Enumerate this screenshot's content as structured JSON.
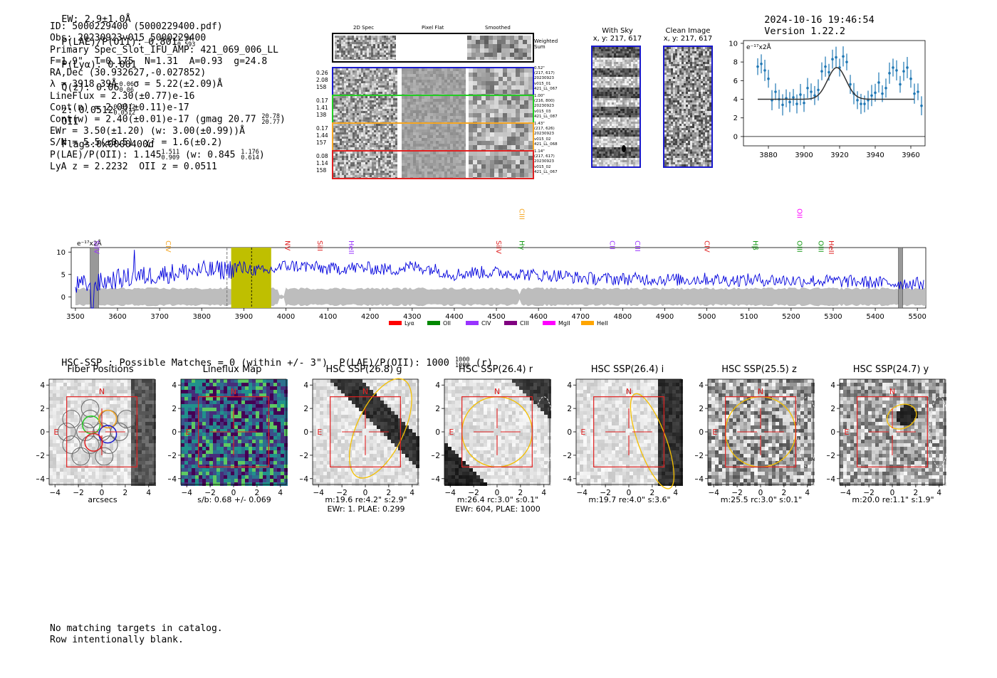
{
  "header": {
    "ew": "EW: 2.9±1.0Å",
    "plae": "P(LAE)/P(OII): 0.801",
    "plae_hi": "1.14",
    "plae_lo": "0.593",
    "plya": "P(Lyα): 0.001",
    "q": "Q(z): 0.06",
    "q_hi": "0.06",
    "q_lo": "0.06",
    "z": "z: 0.0512",
    "z_hi": "0.0512",
    "z_lo": "0.0512",
    "z_line": "OII",
    "flags": "Flags:0x0000400d",
    "timestamp": "2024-10-16 19:46:54",
    "version": "Version 1.22.2"
  },
  "info": {
    "id": "ID: 5000229400 (5000229400.pdf)",
    "obs": "Obs: 20230923v015_5000229400",
    "primary": "Primary Spec_Slot_IFU_AMP: 421_069_006_LL",
    "params": "F=1.9\"  T=0.175  N=1.31  A=0.93  g=24.8",
    "radec": "RA,Dec (30.932627,-0.027852)",
    "lambda": "λ = 3918.39Å   σ = 5.22(±2.09)Å",
    "lineflux": "LineFlux = 2.30(±0.77)e-16",
    "contn": "Cont(n) = 2.00(±0.11)e-17",
    "contw": "Cont(w) = 2.40(±0.01)e-17 (gmag 20.77",
    "contw_hi": "20.78",
    "contw_lo": "20.77",
    "ewr": "EWr = 3.50(±1.20) (w: 3.00(±0.99))Å",
    "sn": "S/N = 5.5(±0.5)  χ² = 1.6(±0.2)",
    "plae": "P(LAE)/P(OII): 1.145",
    "plae_hi": "1.511",
    "plae_lo": "0.909",
    "plae_w": "(w: 0.845",
    "plae_w_hi": "1.176",
    "plae_w_lo": "0.614",
    "lya": "LyA z = 2.2232  OII z = 0.0511"
  },
  "spec2d": {
    "col_titles": [
      "2D Spec",
      "Pixel Flat",
      "Smoothed"
    ],
    "weighted_sum": "Weighted Sum",
    "rows": [
      {
        "color": "#1a1acc",
        "left": [
          "0.26",
          "2.08",
          "158"
        ],
        "right": [
          "0.52\"",
          "(217, 617)",
          "20230923",
          "v015_01",
          "421_LL_067"
        ]
      },
      {
        "color": "#22cc22",
        "left": [
          "0.17",
          "1.41",
          "138"
        ],
        "right": [
          "1.00\"",
          "(216, 800)",
          "20230923",
          "v015_03",
          "421_LL_087"
        ]
      },
      {
        "color": "#f5a623",
        "left": [
          "0.17",
          "1.44",
          "157"
        ],
        "right": [
          "1.43\"",
          "(217, 626)",
          "20230923",
          "v015_02",
          "421_LL_068"
        ]
      },
      {
        "color": "#e02020",
        "left": [
          "0.08",
          "1.14",
          "158"
        ],
        "right": [
          "1.14\"",
          "(217, 617)",
          "20230923",
          "v015_02",
          "421_LL_067"
        ]
      }
    ]
  },
  "sky": {
    "with_sky_title": "With Sky",
    "with_sky_coords": "x, y: 217, 617",
    "clean_title": "Clean Image",
    "clean_coords": "x, y: 217, 617"
  },
  "zoom_chart": {
    "ylabel": "e⁻¹⁷x2Å",
    "xticks": [
      "3880",
      "3900",
      "3920",
      "3940",
      "3960"
    ],
    "yticks": [
      "0",
      "2",
      "4",
      "6",
      "8",
      "10"
    ]
  },
  "spectrum": {
    "ylabel": "e⁻¹⁷x2Å",
    "xticks": [
      "3500",
      "3600",
      "3700",
      "3800",
      "3900",
      "4000",
      "4100",
      "4200",
      "4300",
      "4400",
      "4500",
      "4600",
      "4700",
      "4800",
      "4900",
      "5000",
      "5100",
      "5200",
      "5300",
      "5400",
      "5500"
    ],
    "yticks": [
      "0",
      "5",
      "10"
    ],
    "lines": [
      {
        "label": "SiIV",
        "color": "#9933ff"
      },
      {
        "label": "CIV",
        "color": "#f5a623"
      },
      {
        "label": "NV",
        "color": "#e02020"
      },
      {
        "label": "SiII",
        "color": "#e02020"
      },
      {
        "label": "HeII",
        "color": "#9933ff"
      },
      {
        "label": "SiIV",
        "color": "#e02020"
      },
      {
        "label": "CIII",
        "color": "#f5a623"
      },
      {
        "label": "Hγ",
        "color": "#119911"
      },
      {
        "label": "CII",
        "color": "#9933ff"
      },
      {
        "label": "CIII",
        "color": "#9933ff"
      },
      {
        "label": "CIV",
        "color": "#e02020"
      },
      {
        "label": "Hβ",
        "color": "#119911"
      },
      {
        "label": "OII",
        "color": "#ff00ff"
      },
      {
        "label": "OIII",
        "color": "#119911"
      },
      {
        "label": "OIII",
        "color": "#119911"
      },
      {
        "label": "HeII",
        "color": "#e02020"
      }
    ],
    "legend": [
      {
        "label": "Lyα",
        "color": "#ff0000"
      },
      {
        "label": "OII",
        "color": "#008800"
      },
      {
        "label": "CIV",
        "color": "#9933ff"
      },
      {
        "label": "CIII",
        "color": "#800080"
      },
      {
        "label": "MgII",
        "color": "#ff00ff"
      },
      {
        "label": "HeII",
        "color": "#ffa500"
      }
    ]
  },
  "hsc": {
    "summary": "HSC-SSP : Possible Matches = 0 (within +/- 3\")  P(LAE)/P(OII): 1000",
    "summary_hi": "1000",
    "summary_lo": "1000",
    "summary_tail": "(r)",
    "panels": [
      {
        "title": "Fiber Positions",
        "foot1": "arcsecs",
        "foot2": ""
      },
      {
        "title": "Lineflux Map",
        "foot1": "s/b: 0.68 +/- 0.069",
        "foot2": ""
      },
      {
        "title": "HSC SSP(26.8) g",
        "foot1": "m:19.6  re:4.2\"  s:2.9\"",
        "foot2": "EWr: 1. PLAE: 0.299"
      },
      {
        "title": "HSC SSP(26.4) r",
        "foot1": "m:26.4 rc:3.0\"  s:0.1\"",
        "foot2": "EWr: 604, PLAE: 1000"
      },
      {
        "title": "HSC SSP(26.4) i",
        "foot1": "m:19.7  re:4.0\"  s:3.6\"",
        "foot2": ""
      },
      {
        "title": "HSC SSP(25.5) z",
        "foot1": "m:25.5 rc:3.0\"  s:0.1\"",
        "foot2": ""
      },
      {
        "title": "HSC SSP(24.7) y",
        "foot1": "m:20.0  re:1.1\"  s:1.9\"",
        "foot2": ""
      }
    ],
    "axis_ticks": [
      "−4",
      "−2",
      "0",
      "2",
      "4"
    ],
    "north": "N",
    "east": "E"
  },
  "footer": {
    "line1": "No matching targets in catalog.",
    "line2": "Row intentionally blank."
  },
  "chart_data": [
    {
      "type": "scatter",
      "title": "",
      "xlabel": "",
      "ylabel": "e⁻¹⁷x2Å",
      "xlim": [
        3866,
        3968
      ],
      "ylim": [
        -1,
        10.3
      ],
      "x": [
        3874,
        3876,
        3878,
        3880,
        3882,
        3884,
        3886,
        3888,
        3890,
        3892,
        3894,
        3896,
        3898,
        3900,
        3902,
        3904,
        3906,
        3908,
        3910,
        3912,
        3914,
        3916,
        3918,
        3920,
        3922,
        3924,
        3926,
        3928,
        3930,
        3932,
        3934,
        3936,
        3938,
        3940,
        3942,
        3944,
        3946,
        3948,
        3950,
        3952,
        3954,
        3956,
        3958,
        3960,
        3962,
        3964,
        3966
      ],
      "y": [
        7.5,
        7.8,
        7.1,
        6.2,
        3.9,
        4.8,
        4.0,
        3.4,
        4.1,
        3.7,
        4.2,
        3.5,
        4.5,
        3.6,
        5.2,
        4.8,
        4.4,
        5.0,
        7.0,
        7.5,
        6.9,
        8.3,
        8.5,
        7.4,
        8.6,
        8.0,
        5.6,
        4.6,
        3.9,
        3.5,
        3.5,
        3.9,
        4.4,
        4.7,
        5.8,
        4.6,
        5.2,
        6.8,
        7.4,
        7.1,
        5.6,
        7.0,
        7.4,
        6.2,
        4.6,
        4.8,
        3.3
      ],
      "fit": {
        "continuum": 4.0,
        "amplitude": 3.4,
        "center": 3918.4,
        "sigma": 5.2
      }
    },
    {
      "type": "line",
      "title": "",
      "xlabel": "",
      "ylabel": "e⁻¹⁷x2Å",
      "xlim": [
        3490,
        5520
      ],
      "ylim": [
        -2.5,
        11
      ],
      "series": [
        {
          "x": [
            3500,
            3550,
            3600,
            3650,
            3700,
            3750,
            3800,
            3850,
            3900,
            3950,
            4000,
            4050,
            4100,
            4150,
            4200,
            4250,
            4300,
            4350,
            4400,
            4450,
            4500,
            4550,
            4600,
            4650,
            4700,
            4750,
            4800,
            4850,
            4900,
            4950,
            5000,
            5050,
            5100,
            5150,
            5200,
            5250,
            5300,
            5350,
            5400,
            5450,
            5500
          ],
          "values": [
            2.5,
            3.0,
            4.0,
            4.5,
            5.0,
            5.5,
            5.8,
            6.0,
            6.5,
            5.5,
            7.0,
            6.8,
            6.2,
            6.5,
            6.4,
            6.0,
            6.8,
            6.2,
            5.0,
            5.5,
            5.4,
            5.2,
            4.8,
            4.8,
            4.2,
            4.0,
            4.0,
            4.0,
            3.9,
            3.8,
            4.0,
            3.7,
            3.8,
            3.8,
            3.6,
            3.6,
            3.5,
            3.4,
            3.2,
            3.0,
            3.0
          ]
        }
      ],
      "highlight_range": [
        3870,
        3965
      ],
      "masked_ranges": [
        [
          3535,
          3555
        ],
        [
          5455,
          5465
        ]
      ]
    }
  ]
}
